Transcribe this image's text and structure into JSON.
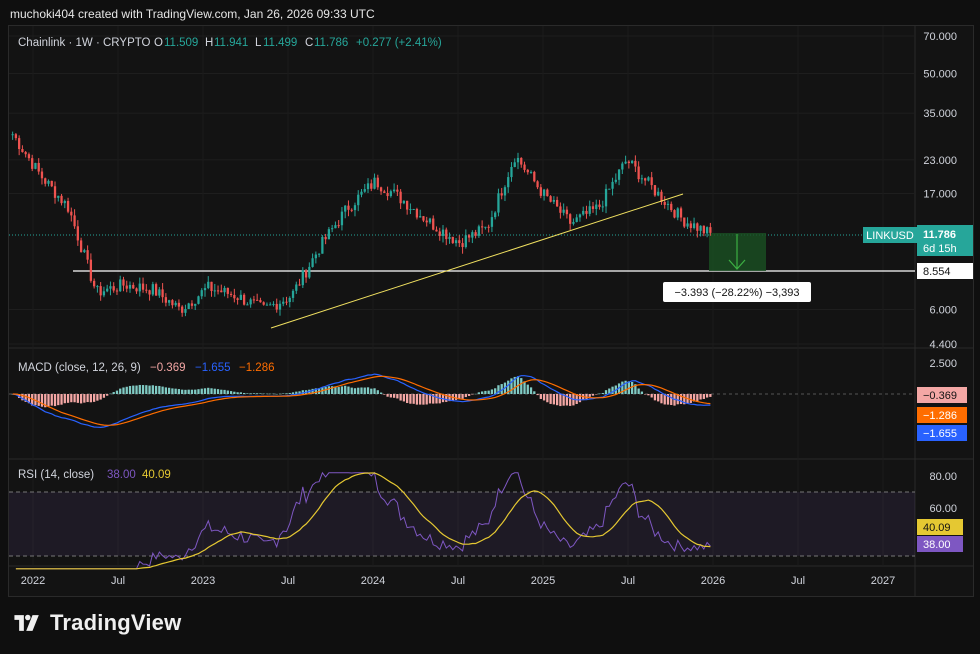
{
  "header": {
    "attribution": "muchoki404 created with TradingView.com, Jan 26, 2026 09:33 UTC"
  },
  "legend": {
    "symbol": "Chainlink · 1W · CRYPTO",
    "o_label": "O",
    "o_value": "11.509",
    "h_label": "H",
    "h_value": "11.941",
    "l_label": "L",
    "l_value": "11.499",
    "c_label": "C",
    "c_value": "11.786",
    "change": "+0.277 (+2.41%)"
  },
  "badges": {
    "ticker": "LINKUSD",
    "price": "11.786",
    "countdown": "6d 15h",
    "support": "8.554",
    "measure": "−3.393 (−28.22%) −3,393",
    "macd_hist": "−0.369",
    "macd_signal": "−1.286",
    "macd_line": "−1.655",
    "rsi_ma": "40.09",
    "rsi": "38.00"
  },
  "macd_legend": {
    "title": "MACD (close, 12, 26, 9)",
    "v1": "−0.369",
    "v2": "−1.655",
    "v3": "−1.286"
  },
  "rsi_legend": {
    "title": "RSI (14, close)",
    "v1": "38.00",
    "v2": "40.09"
  },
  "brand": {
    "name": "TradingView"
  },
  "colors": {
    "up": "#26a69a",
    "down": "#ef5350",
    "trendline": "#f0e060",
    "macd_line": "#2962ff",
    "signal_line": "#ff6d00",
    "rsi_line": "#7e57c2",
    "rsi_ma": "#e5c832",
    "measure_box": "#1a4d22"
  },
  "chart_data": [
    {
      "type": "candlestick",
      "title": "Chainlink · 1W · CRYPTO",
      "scale": "log",
      "y_ticks": [
        "70.000",
        "50.000",
        "35.000",
        "23.000",
        "17.000",
        "6.000",
        "4.400"
      ],
      "x_ticks": [
        "2022",
        "Jul",
        "2023",
        "Jul",
        "2024",
        "Jul",
        "2025",
        "Jul",
        "2026",
        "Jul",
        "2027"
      ],
      "ylim": [
        4.0,
        75.0
      ],
      "last": {
        "open": 11.509,
        "high": 11.941,
        "low": 11.499,
        "close": 11.786,
        "change": 0.277,
        "change_pct": 2.41
      },
      "support_level": 8.554,
      "trendline": {
        "from": [
          "2023-06",
          5.2
        ],
        "to": [
          "2025-10",
          17.5
        ]
      },
      "measure": {
        "from": 11.947,
        "to": 8.554,
        "delta": -3.393,
        "pct": -28.22
      },
      "series": [
        {
          "name": "LINKUSD",
          "x": [
            "2021-12",
            "2022-02",
            "2022-04",
            "2022-06",
            "2022-08",
            "2022-10",
            "2022-12",
            "2023-02",
            "2023-04",
            "2023-06",
            "2023-08",
            "2023-10",
            "2023-12",
            "2024-02",
            "2024-04",
            "2024-06",
            "2024-08",
            "2024-10",
            "2024-12",
            "2025-02",
            "2025-04",
            "2025-06",
            "2025-08",
            "2025-10",
            "2025-12",
            "2026-01"
          ],
          "values": [
            29,
            20,
            15,
            7,
            7.5,
            7.2,
            6.0,
            7.3,
            6.8,
            6.0,
            6.8,
            10.5,
            15.0,
            19.0,
            16.0,
            13.0,
            11.0,
            12.5,
            24.0,
            17.0,
            13.0,
            15.0,
            23.0,
            17.5,
            13.5,
            11.8
          ]
        }
      ]
    },
    {
      "type": "bar",
      "title": "MACD (close, 12, 26, 9)",
      "y_ticks": [
        "2.500"
      ],
      "values_last": {
        "histogram": -0.369,
        "macd": -1.655,
        "signal": -1.286
      }
    },
    {
      "type": "line",
      "title": "RSI (14, close)",
      "y_ticks": [
        "80.00",
        "60.00"
      ],
      "bands": [
        30,
        70
      ],
      "values_last": {
        "rsi": 38.0,
        "rsi_ma": 40.09
      }
    }
  ]
}
